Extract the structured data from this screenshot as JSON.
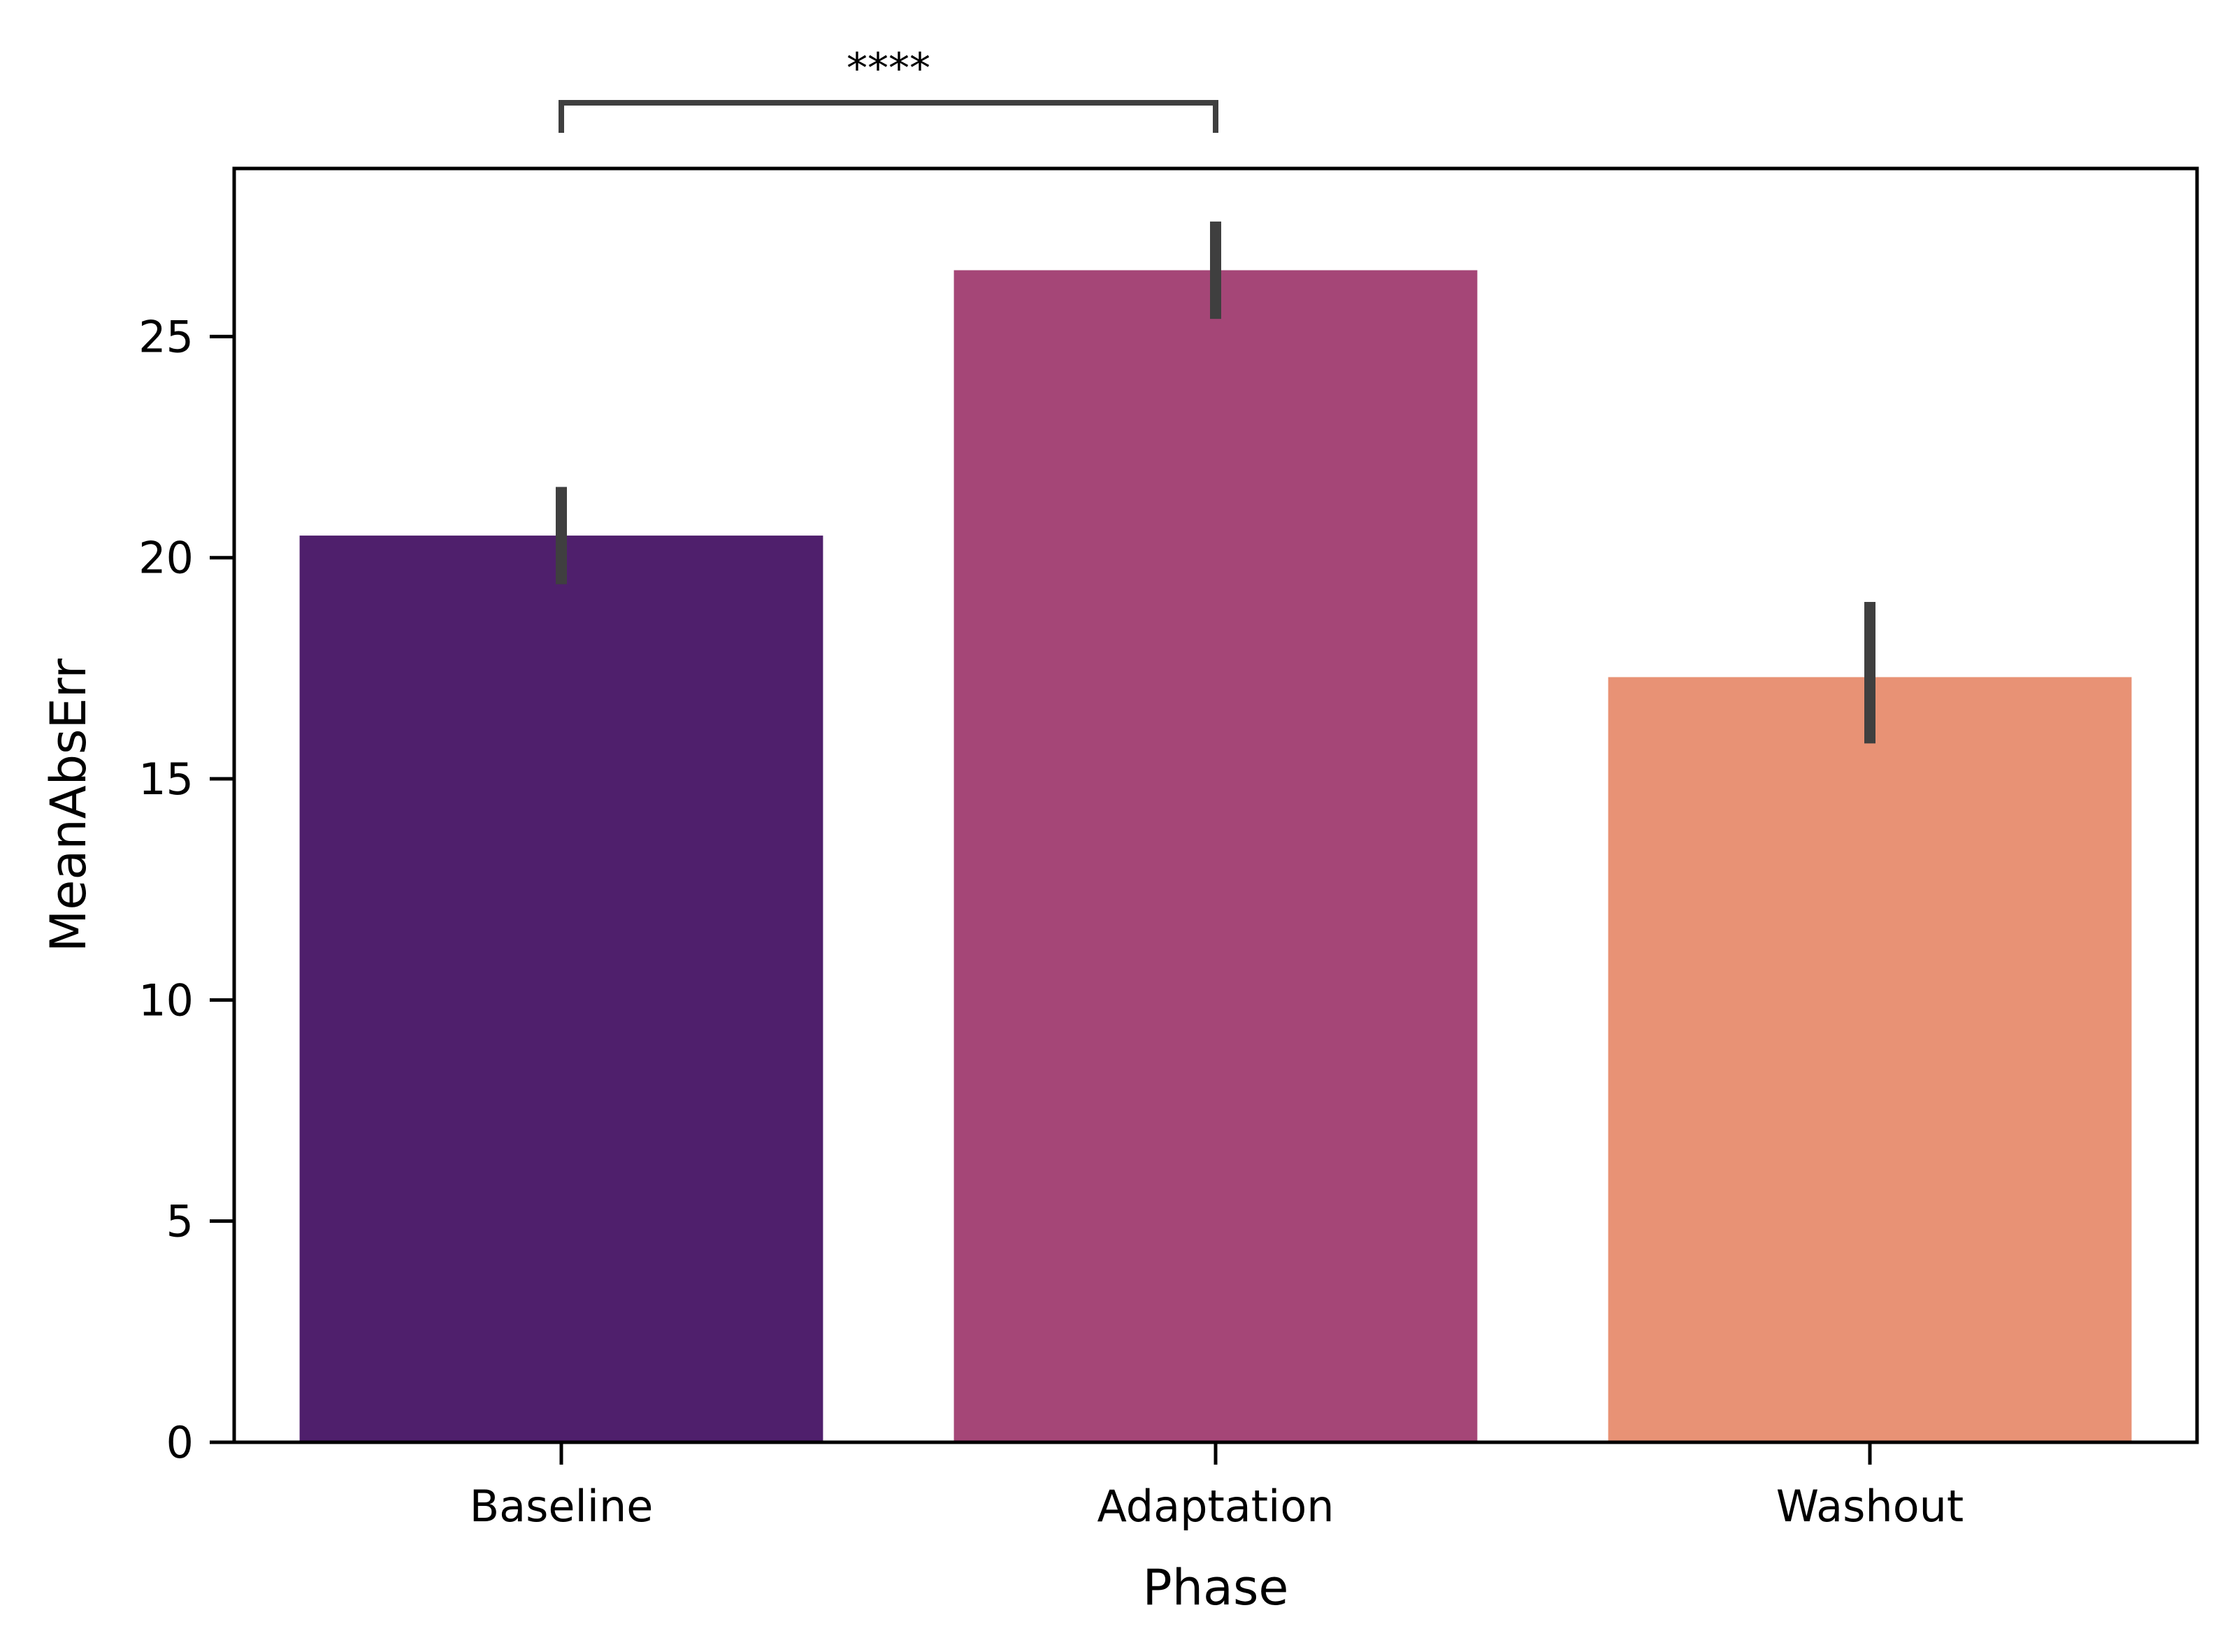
{
  "chart_data": {
    "type": "bar",
    "title": "",
    "xlabel": "Phase",
    "ylabel": "MeanAbsErr",
    "categories": [
      "Baseline",
      "Adaptation",
      "Washout"
    ],
    "values": [
      20.5,
      26.5,
      17.3
    ],
    "error_low": [
      19.4,
      25.4,
      15.8
    ],
    "error_high": [
      21.6,
      27.6,
      19.0
    ],
    "colors": [
      "#4f1f6c",
      "#a54677",
      "#e89275"
    ],
    "error_color": "#3f3f3f",
    "ylim": [
      0,
      28.8
    ],
    "yticks": [
      0,
      5,
      10,
      15,
      20,
      25
    ],
    "grid": false,
    "annotation": {
      "text": "****",
      "from_category": "Baseline",
      "to_category": "Adaptation"
    }
  }
}
